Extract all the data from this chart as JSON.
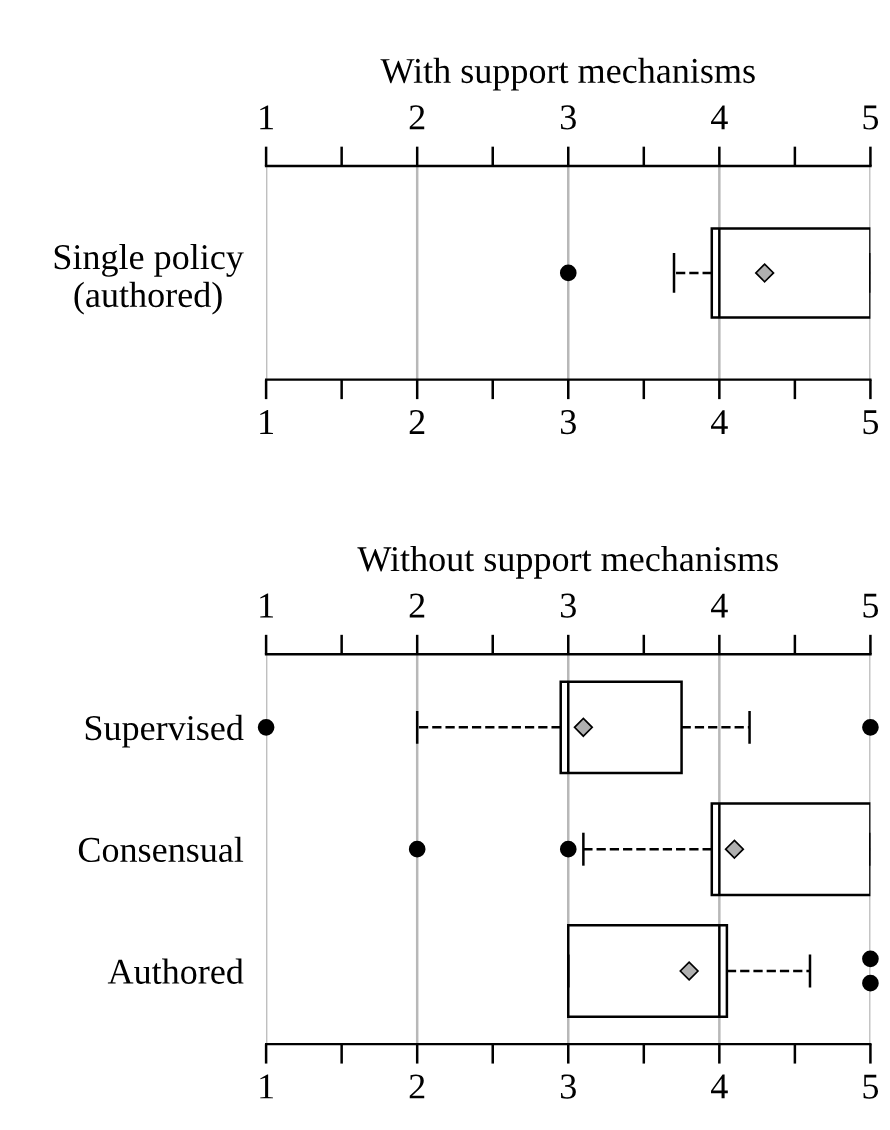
{
  "chart_data": [
    {
      "type": "box",
      "title": "With support mechanisms",
      "orientation": "horizontal",
      "categories": [
        "Single policy\n(authored)"
      ],
      "boxes": [
        {
          "low": 3.7,
          "q1": 3.95,
          "median": 4.0,
          "q3": 5,
          "high": 5,
          "mean": 4.3,
          "outliers": [
            3
          ]
        }
      ],
      "xlim": [
        1,
        5
      ],
      "xticks": [
        1,
        {
          "value": 1.5,
          "label": null
        },
        2,
        {
          "value": 2.5,
          "label": null
        },
        3,
        {
          "value": 3.5,
          "label": null
        },
        4,
        {
          "value": 4.5,
          "label": null
        },
        5
      ],
      "x2lim": [
        1,
        5
      ],
      "x2ticks": [
        1,
        {
          "value": 1.5,
          "label": null
        },
        2,
        {
          "value": 2.5,
          "label": null
        },
        3,
        {
          "value": 3.5,
          "label": null
        },
        4,
        {
          "value": 4.5,
          "label": null
        },
        5
      ],
      "grid": "x",
      "line_style": "dashed"
    },
    {
      "type": "box",
      "title": "Without support mechanisms",
      "orientation": "horizontal",
      "categories": [
        "Supervised",
        "Consensual",
        "Authored"
      ],
      "boxes": [
        {
          "low": 2,
          "q1": 2.95,
          "median": 3.0,
          "q3": 3.75,
          "high": 4.2,
          "mean": 3.1,
          "outliers": [
            1,
            5
          ]
        },
        {
          "low": 3.1,
          "q1": 3.95,
          "median": 4.0,
          "q3": 5,
          "high": 5,
          "mean": 4.1,
          "outliers": [
            2,
            3
          ]
        },
        {
          "low": 3.0,
          "q1": 3.0,
          "median": 4.0,
          "q3": 4.05,
          "high": 4.6,
          "mean": 3.8,
          "outliers": [
            5,
            5
          ]
        }
      ],
      "xlim": [
        1,
        5
      ],
      "xticks": [
        1,
        {
          "value": 1.5,
          "label": null
        },
        2,
        {
          "value": 2.5,
          "label": null
        },
        3,
        {
          "value": 3.5,
          "label": null
        },
        4,
        {
          "value": 4.5,
          "label": null
        },
        5
      ],
      "x2lim": [
        1,
        5
      ],
      "x2ticks": [
        1,
        {
          "value": 1.5,
          "label": null
        },
        2,
        {
          "value": 2.5,
          "label": null
        },
        3,
        {
          "value": 3.5,
          "label": null
        },
        4,
        {
          "value": 4.5,
          "label": null
        },
        5
      ],
      "grid": "x",
      "line_style": "dashed"
    }
  ]
}
